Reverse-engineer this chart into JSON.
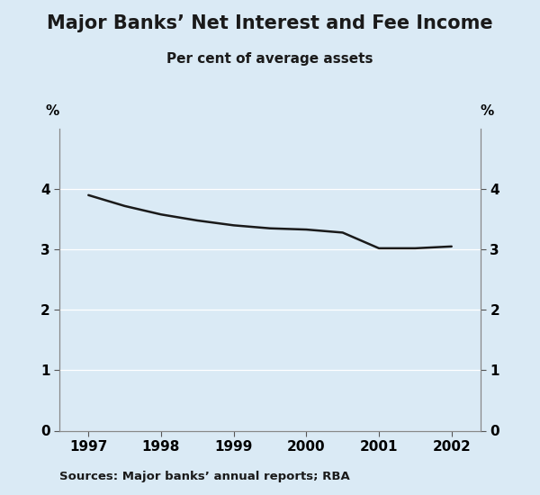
{
  "title": "Major Banks’ Net Interest and Fee Income",
  "subtitle": "Per cent of average assets",
  "source_text": "Sources: Major banks’ annual reports; RBA",
  "x_values": [
    1997,
    1997.5,
    1998,
    1998.5,
    1999,
    1999.5,
    2000,
    2000.5,
    2001,
    2001.5,
    2002
  ],
  "y_values": [
    3.9,
    3.72,
    3.58,
    3.48,
    3.4,
    3.35,
    3.33,
    3.28,
    3.02,
    3.02,
    3.05
  ],
  "xlim": [
    1996.6,
    2002.4
  ],
  "ylim": [
    0,
    5
  ],
  "yticks": [
    0,
    1,
    2,
    3,
    4
  ],
  "xticks": [
    1997,
    1998,
    1999,
    2000,
    2001,
    2002
  ],
  "ylabel_left": "%",
  "ylabel_right": "%",
  "line_color": "#1a1a1a",
  "line_width": 1.8,
  "bg_color": "#daeaf5",
  "fig_bg_color": "#daeaf5",
  "title_fontsize": 15,
  "subtitle_fontsize": 11,
  "tick_fontsize": 11,
  "source_fontsize": 9.5
}
